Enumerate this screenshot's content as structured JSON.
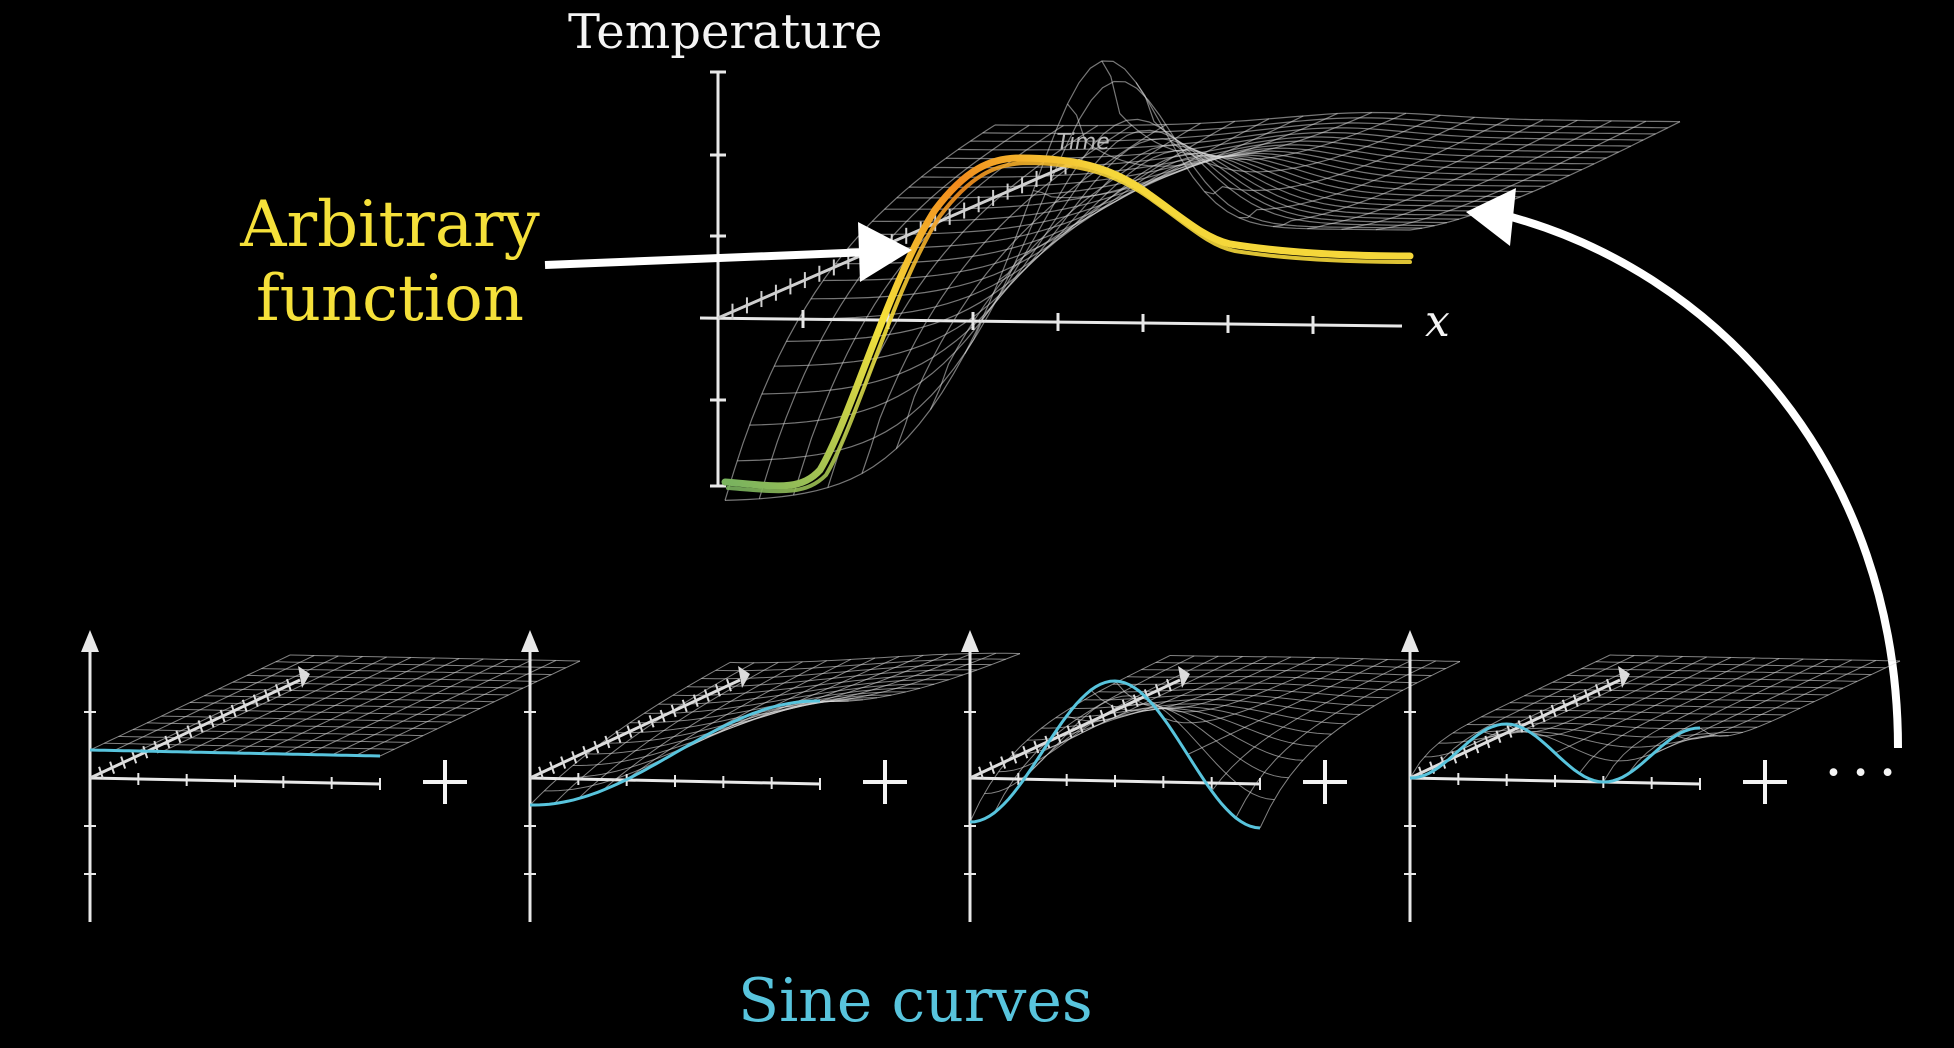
{
  "top_graph": {
    "y_axis_label": "Temperature",
    "x_axis_label": "x",
    "depth_axis_label": "Time"
  },
  "callout": {
    "line1": "Arbitrary",
    "line2": "function",
    "color": "#f5e03a"
  },
  "bottom": {
    "caption": "Sine curves",
    "caption_color": "#58c4dd",
    "operators": [
      "+",
      "+",
      "+",
      "+"
    ],
    "ellipsis": "···"
  },
  "colors": {
    "background": "#000000",
    "axes": "#e8e8e8",
    "surface_grid": "#d8d8d8",
    "sine_curve": "#58c4dd",
    "gradient_start": "#7ab35e",
    "gradient_mid": "#f5e03a",
    "gradient_end": "#f28a1c"
  }
}
